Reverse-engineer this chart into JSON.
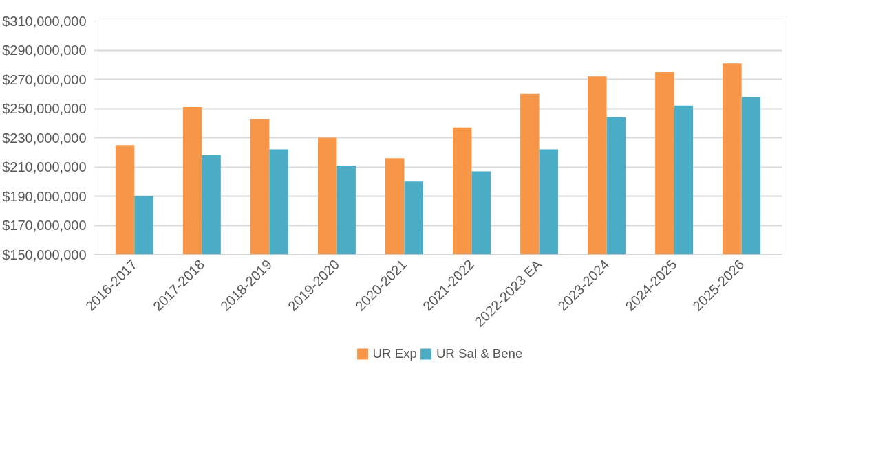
{
  "chart_data": {
    "type": "bar",
    "categories": [
      "2016-2017",
      "2017-2018",
      "2018-2019",
      "2019-2020",
      "2020-2021",
      "2021-2022",
      "2022-2023 EA",
      "2023-2024",
      "2024-2025",
      "2025-2026"
    ],
    "series": [
      {
        "name": "UR Exp",
        "color": "#f79646",
        "values": [
          225000000,
          251000000,
          243000000,
          230000000,
          216000000,
          237000000,
          260000000,
          272000000,
          275000000,
          281000000
        ]
      },
      {
        "name": "UR Sal & Bene",
        "color": "#4bacc6",
        "values": [
          190000000,
          218000000,
          222000000,
          211000000,
          200000000,
          207000000,
          222000000,
          244000000,
          252000000,
          258000000
        ]
      }
    ],
    "ylim": [
      150000000,
      310000000
    ],
    "yticks": [
      {
        "value": 150000000,
        "label": "$150,000,000"
      },
      {
        "value": 170000000,
        "label": "$170,000,000"
      },
      {
        "value": 190000000,
        "label": "$190,000,000"
      },
      {
        "value": 210000000,
        "label": "$210,000,000"
      },
      {
        "value": 230000000,
        "label": "$230,000,000"
      },
      {
        "value": 250000000,
        "label": "$250,000,000"
      },
      {
        "value": 270000000,
        "label": "$270,000,000"
      },
      {
        "value": 290000000,
        "label": "$290,000,000"
      },
      {
        "value": 310000000,
        "label": "$310,000,000"
      }
    ],
    "grid": "y",
    "legend": "bottom"
  }
}
